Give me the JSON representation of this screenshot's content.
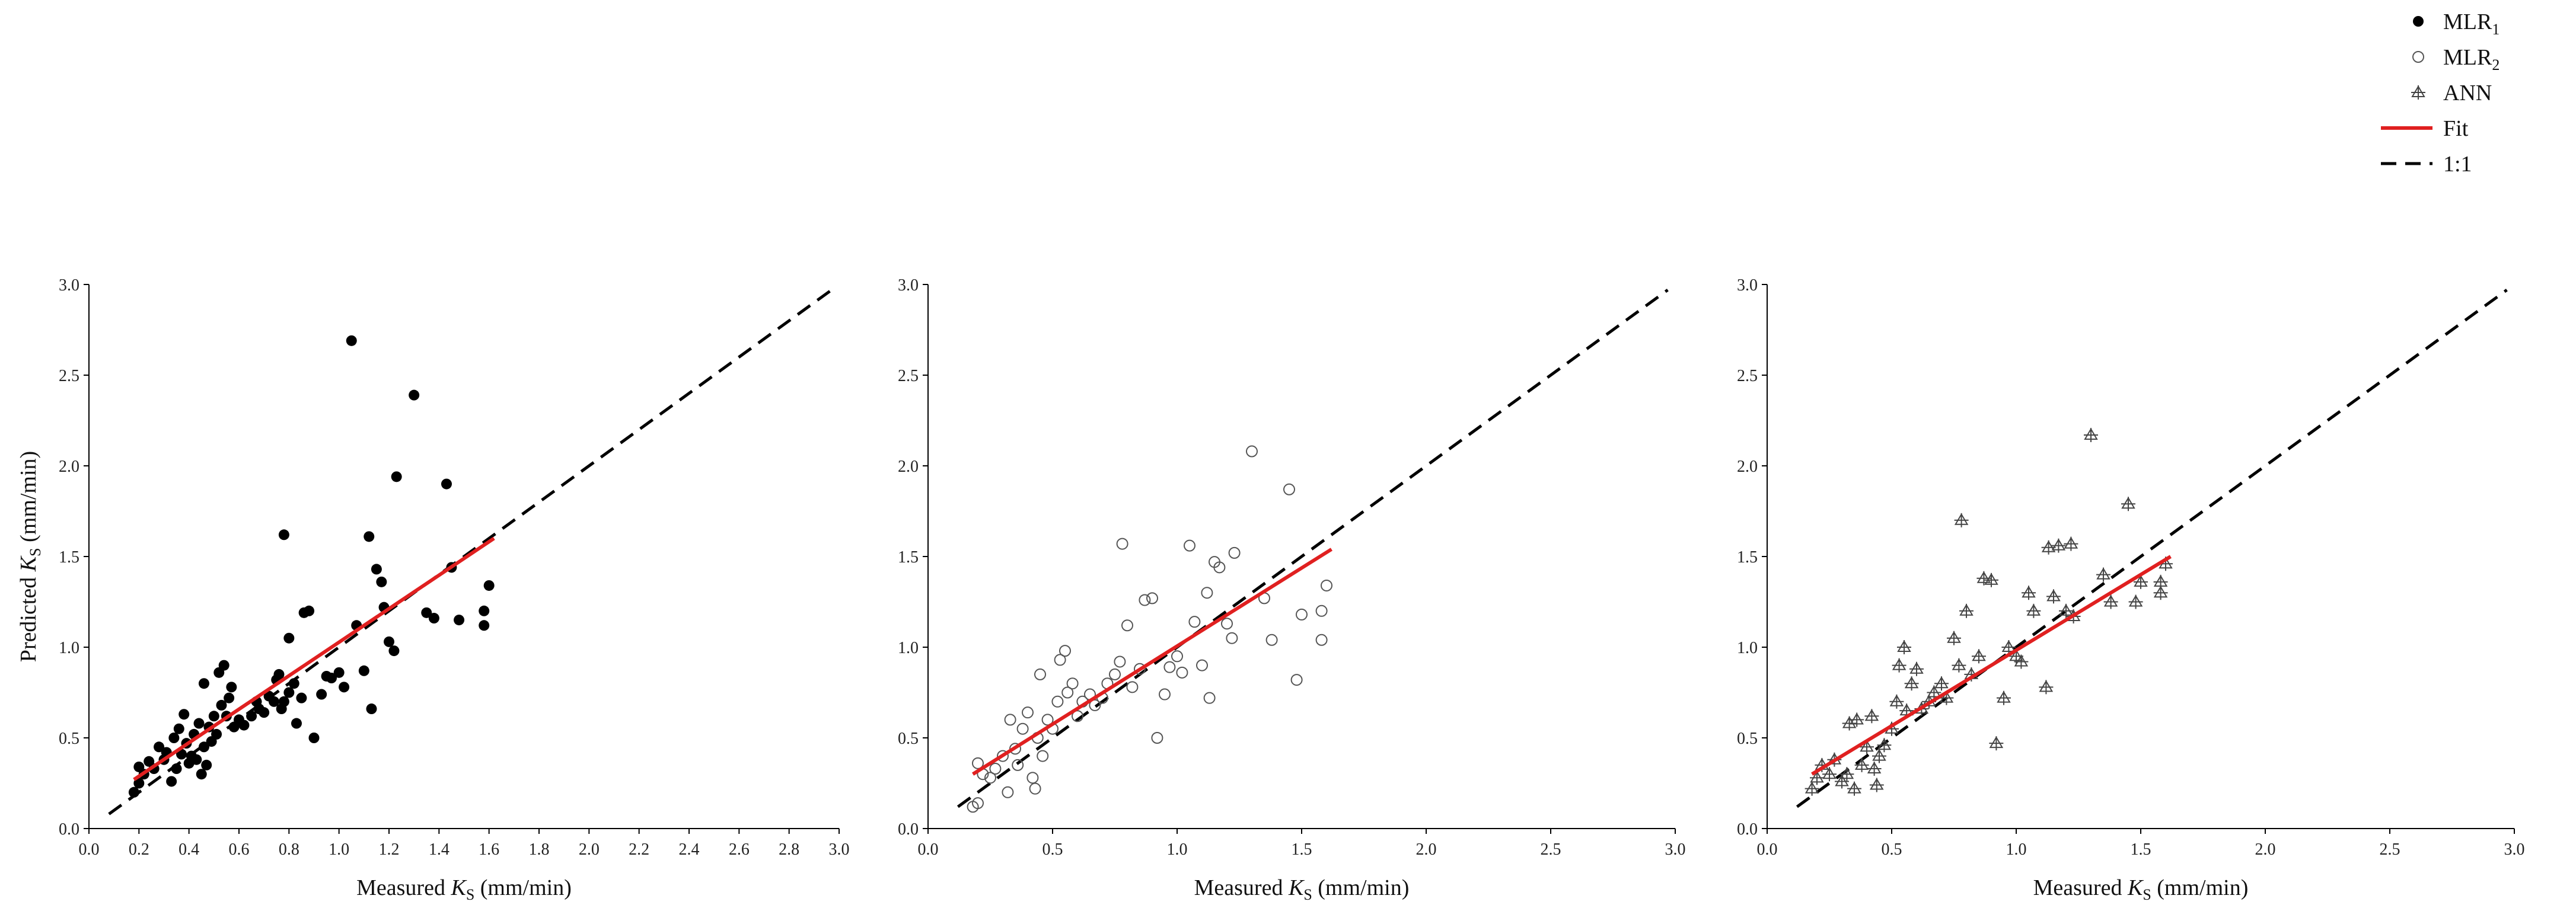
{
  "legend": {
    "entries": [
      {
        "label": "MLR",
        "sub": "1",
        "marker": "filled-circle"
      },
      {
        "label": "MLR",
        "sub": "2",
        "marker": "open-circle"
      },
      {
        "label": "ANN",
        "sub": "",
        "marker": "crossed-triangle"
      },
      {
        "label": "Fit",
        "sub": "",
        "marker": "solid-line"
      },
      {
        "label": "1:1",
        "sub": "",
        "marker": "dashed-line"
      }
    ]
  },
  "colors": {
    "fit": "#e02020",
    "points": "#000000",
    "one_to_one": "#000000"
  },
  "chart_data": [
    {
      "type": "scatter",
      "series_label": "MLR1",
      "marker": "filled-circle",
      "xlabel": "Measured K_S (mm/min)",
      "ylabel": "Predicted K_S (mm/min)",
      "xlim": [
        0,
        3.0
      ],
      "ylim": [
        0,
        3.0
      ],
      "xticks": [
        "0.0",
        "0.2",
        "0.4",
        "0.6",
        "0.8",
        "1.0",
        "1.2",
        "1.4",
        "1.6",
        "1.8",
        "2.0",
        "2.2",
        "2.4",
        "2.6",
        "2.8",
        "3.0"
      ],
      "yticks": [
        "0.0",
        "0.5",
        "1.0",
        "1.5",
        "2.0",
        "2.5",
        "3.0"
      ],
      "fit": {
        "x": [
          0.18,
          1.62
        ],
        "y": [
          0.27,
          1.6
        ]
      },
      "one_to_one": {
        "x": [
          0.08,
          2.97
        ],
        "y": [
          0.08,
          2.97
        ]
      },
      "points": [
        [
          0.18,
          0.2
        ],
        [
          0.2,
          0.25
        ],
        [
          0.2,
          0.34
        ],
        [
          0.22,
          0.3
        ],
        [
          0.24,
          0.37
        ],
        [
          0.26,
          0.33
        ],
        [
          0.28,
          0.45
        ],
        [
          0.3,
          0.38
        ],
        [
          0.31,
          0.42
        ],
        [
          0.33,
          0.26
        ],
        [
          0.34,
          0.5
        ],
        [
          0.35,
          0.33
        ],
        [
          0.36,
          0.55
        ],
        [
          0.37,
          0.41
        ],
        [
          0.38,
          0.63
        ],
        [
          0.39,
          0.47
        ],
        [
          0.4,
          0.36
        ],
        [
          0.41,
          0.4
        ],
        [
          0.42,
          0.52
        ],
        [
          0.43,
          0.38
        ],
        [
          0.44,
          0.58
        ],
        [
          0.45,
          0.3
        ],
        [
          0.46,
          0.45
        ],
        [
          0.46,
          0.8
        ],
        [
          0.47,
          0.35
        ],
        [
          0.48,
          0.56
        ],
        [
          0.49,
          0.48
        ],
        [
          0.5,
          0.62
        ],
        [
          0.51,
          0.52
        ],
        [
          0.52,
          0.86
        ],
        [
          0.53,
          0.68
        ],
        [
          0.54,
          0.9
        ],
        [
          0.55,
          0.62
        ],
        [
          0.56,
          0.72
        ],
        [
          0.57,
          0.78
        ],
        [
          0.58,
          0.56
        ],
        [
          0.6,
          0.6
        ],
        [
          0.62,
          0.57
        ],
        [
          0.65,
          0.62
        ],
        [
          0.67,
          0.7
        ],
        [
          0.68,
          0.66
        ],
        [
          0.7,
          0.64
        ],
        [
          0.72,
          0.73
        ],
        [
          0.74,
          0.7
        ],
        [
          0.75,
          0.82
        ],
        [
          0.76,
          0.85
        ],
        [
          0.77,
          0.66
        ],
        [
          0.78,
          1.62
        ],
        [
          0.78,
          0.7
        ],
        [
          0.8,
          1.05
        ],
        [
          0.8,
          0.75
        ],
        [
          0.82,
          0.8
        ],
        [
          0.83,
          0.58
        ],
        [
          0.85,
          0.72
        ],
        [
          0.86,
          1.19
        ],
        [
          0.88,
          1.2
        ],
        [
          0.9,
          0.5
        ],
        [
          0.93,
          0.74
        ],
        [
          0.95,
          0.84
        ],
        [
          0.97,
          0.83
        ],
        [
          1.0,
          0.86
        ],
        [
          1.02,
          0.78
        ],
        [
          1.05,
          2.69
        ],
        [
          1.07,
          1.12
        ],
        [
          1.1,
          0.87
        ],
        [
          1.12,
          1.61
        ],
        [
          1.13,
          0.66
        ],
        [
          1.15,
          1.43
        ],
        [
          1.17,
          1.36
        ],
        [
          1.18,
          1.22
        ],
        [
          1.2,
          1.03
        ],
        [
          1.22,
          0.98
        ],
        [
          1.23,
          1.94
        ],
        [
          1.3,
          2.39
        ],
        [
          1.35,
          1.19
        ],
        [
          1.38,
          1.16
        ],
        [
          1.43,
          1.9
        ],
        [
          1.45,
          1.44
        ],
        [
          1.48,
          1.15
        ],
        [
          1.58,
          1.2
        ],
        [
          1.58,
          1.12
        ],
        [
          1.6,
          1.34
        ]
      ]
    },
    {
      "type": "scatter",
      "series_label": "MLR2",
      "marker": "open-circle",
      "xlabel": "Measured K_S (mm/min)",
      "ylabel": "",
      "xlim": [
        0,
        3.0
      ],
      "ylim": [
        0,
        3.0
      ],
      "xticks": [
        "0.0",
        "0.5",
        "1.0",
        "1.5",
        "2.0",
        "2.5",
        "3.0"
      ],
      "yticks": [
        "0.0",
        "0.5",
        "1.0",
        "1.5",
        "2.0",
        "2.5",
        "3.0"
      ],
      "fit": {
        "x": [
          0.18,
          1.62
        ],
        "y": [
          0.3,
          1.54
        ]
      },
      "one_to_one": {
        "x": [
          0.12,
          2.97
        ],
        "y": [
          0.12,
          2.97
        ]
      },
      "points": [
        [
          0.18,
          0.12
        ],
        [
          0.2,
          0.14
        ],
        [
          0.2,
          0.36
        ],
        [
          0.22,
          0.3
        ],
        [
          0.25,
          0.28
        ],
        [
          0.27,
          0.33
        ],
        [
          0.3,
          0.4
        ],
        [
          0.32,
          0.2
        ],
        [
          0.33,
          0.6
        ],
        [
          0.35,
          0.44
        ],
        [
          0.36,
          0.35
        ],
        [
          0.38,
          0.55
        ],
        [
          0.4,
          0.64
        ],
        [
          0.42,
          0.28
        ],
        [
          0.43,
          0.22
        ],
        [
          0.44,
          0.5
        ],
        [
          0.45,
          0.85
        ],
        [
          0.46,
          0.4
        ],
        [
          0.48,
          0.6
        ],
        [
          0.5,
          0.55
        ],
        [
          0.52,
          0.7
        ],
        [
          0.53,
          0.93
        ],
        [
          0.55,
          0.98
        ],
        [
          0.56,
          0.75
        ],
        [
          0.58,
          0.8
        ],
        [
          0.6,
          0.62
        ],
        [
          0.62,
          0.7
        ],
        [
          0.65,
          0.74
        ],
        [
          0.67,
          0.68
        ],
        [
          0.7,
          0.72
        ],
        [
          0.72,
          0.8
        ],
        [
          0.75,
          0.85
        ],
        [
          0.77,
          0.92
        ],
        [
          0.78,
          1.57
        ],
        [
          0.8,
          1.12
        ],
        [
          0.82,
          0.78
        ],
        [
          0.85,
          0.88
        ],
        [
          0.87,
          1.26
        ],
        [
          0.9,
          1.27
        ],
        [
          0.92,
          0.5
        ],
        [
          0.95,
          0.74
        ],
        [
          0.97,
          0.89
        ],
        [
          1.0,
          0.95
        ],
        [
          1.02,
          0.86
        ],
        [
          1.05,
          1.56
        ],
        [
          1.07,
          1.14
        ],
        [
          1.1,
          0.9
        ],
        [
          1.12,
          1.3
        ],
        [
          1.13,
          0.72
        ],
        [
          1.15,
          1.47
        ],
        [
          1.17,
          1.44
        ],
        [
          1.2,
          1.13
        ],
        [
          1.22,
          1.05
        ],
        [
          1.23,
          1.52
        ],
        [
          1.3,
          2.08
        ],
        [
          1.35,
          1.27
        ],
        [
          1.38,
          1.04
        ],
        [
          1.45,
          1.87
        ],
        [
          1.48,
          0.82
        ],
        [
          1.5,
          1.18
        ],
        [
          1.58,
          1.04
        ],
        [
          1.58,
          1.2
        ],
        [
          1.6,
          1.34
        ]
      ]
    },
    {
      "type": "scatter",
      "series_label": "ANN",
      "marker": "crossed-triangle",
      "xlabel": "Measured K_S (mm/min)",
      "ylabel": "",
      "xlim": [
        0,
        3.0
      ],
      "ylim": [
        0,
        3.0
      ],
      "xticks": [
        "0.0",
        "0.5",
        "1.0",
        "1.5",
        "2.0",
        "2.5",
        "3.0"
      ],
      "yticks": [
        "0.0",
        "0.5",
        "1.0",
        "1.5",
        "2.0",
        "2.5",
        "3.0"
      ],
      "fit": {
        "x": [
          0.18,
          1.62
        ],
        "y": [
          0.3,
          1.5
        ]
      },
      "one_to_one": {
        "x": [
          0.12,
          2.97
        ],
        "y": [
          0.12,
          2.97
        ]
      },
      "points": [
        [
          0.18,
          0.22
        ],
        [
          0.2,
          0.28
        ],
        [
          0.22,
          0.35
        ],
        [
          0.25,
          0.3
        ],
        [
          0.27,
          0.38
        ],
        [
          0.3,
          0.26
        ],
        [
          0.32,
          0.3
        ],
        [
          0.33,
          0.58
        ],
        [
          0.35,
          0.22
        ],
        [
          0.36,
          0.6
        ],
        [
          0.38,
          0.35
        ],
        [
          0.4,
          0.45
        ],
        [
          0.42,
          0.62
        ],
        [
          0.43,
          0.33
        ],
        [
          0.44,
          0.24
        ],
        [
          0.45,
          0.4
        ],
        [
          0.47,
          0.46
        ],
        [
          0.5,
          0.55
        ],
        [
          0.52,
          0.7
        ],
        [
          0.53,
          0.9
        ],
        [
          0.55,
          1.0
        ],
        [
          0.56,
          0.65
        ],
        [
          0.58,
          0.8
        ],
        [
          0.6,
          0.88
        ],
        [
          0.62,
          0.66
        ],
        [
          0.65,
          0.7
        ],
        [
          0.67,
          0.75
        ],
        [
          0.7,
          0.8
        ],
        [
          0.72,
          0.72
        ],
        [
          0.75,
          1.05
        ],
        [
          0.77,
          0.9
        ],
        [
          0.78,
          1.7
        ],
        [
          0.8,
          1.2
        ],
        [
          0.82,
          0.85
        ],
        [
          0.85,
          0.95
        ],
        [
          0.87,
          1.38
        ],
        [
          0.9,
          1.37
        ],
        [
          0.92,
          0.47
        ],
        [
          0.95,
          0.72
        ],
        [
          0.97,
          1.0
        ],
        [
          1.0,
          0.95
        ],
        [
          1.02,
          0.92
        ],
        [
          1.05,
          1.3
        ],
        [
          1.07,
          1.2
        ],
        [
          1.12,
          0.78
        ],
        [
          1.13,
          1.55
        ],
        [
          1.15,
          1.28
        ],
        [
          1.17,
          1.56
        ],
        [
          1.2,
          1.2
        ],
        [
          1.22,
          1.57
        ],
        [
          1.23,
          1.17
        ],
        [
          1.3,
          2.17
        ],
        [
          1.35,
          1.4
        ],
        [
          1.38,
          1.25
        ],
        [
          1.45,
          1.79
        ],
        [
          1.48,
          1.25
        ],
        [
          1.5,
          1.36
        ],
        [
          1.58,
          1.3
        ],
        [
          1.58,
          1.36
        ],
        [
          1.6,
          1.46
        ]
      ]
    }
  ]
}
